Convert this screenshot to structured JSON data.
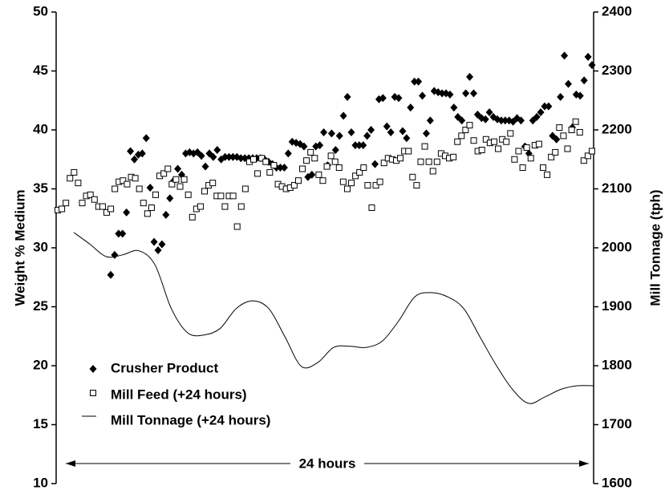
{
  "chart_data": {
    "type": "scatter",
    "ylabel": "Weight % Medium",
    "y2label": "Mill Tonnage (tph)",
    "ylim": [
      10,
      50
    ],
    "yticks": [
      10,
      15,
      20,
      25,
      30,
      35,
      40,
      45,
      50
    ],
    "y2lim": [
      1600,
      2400
    ],
    "y2ticks": [
      1600,
      1700,
      1800,
      1900,
      2000,
      2100,
      2200,
      2300,
      2400
    ],
    "legend": "lower left",
    "annotation": "24 hours",
    "series": [
      {
        "name": "Crusher Product",
        "type": "scatter",
        "marker": "diamond",
        "color": "#000000",
        "values": [
          27.7,
          29.4,
          31.2,
          31.2,
          33.0,
          38.2,
          37.5,
          37.9,
          38.0,
          39.3,
          35.1,
          30.5,
          29.8,
          30.3,
          32.8,
          34.2,
          35.7,
          36.7,
          36.2,
          38.0,
          38.1,
          38.0,
          38.1,
          37.8,
          36.9,
          38.0,
          37.7,
          38.3,
          37.5,
          37.7,
          37.7,
          37.7,
          37.7,
          37.6,
          37.6,
          37.6,
          37.6,
          37.6,
          37.6,
          37.5,
          37.3,
          37.1,
          36.8,
          36.8,
          36.8,
          38.0,
          39.0,
          38.9,
          38.8,
          38.6,
          36.0,
          36.2,
          38.6,
          38.7,
          39.8,
          37.0,
          39.7,
          38.3,
          39.5,
          41.2,
          42.8,
          39.8,
          38.7,
          38.7,
          38.7,
          39.5,
          40.0,
          37.1,
          42.6,
          42.7,
          40.3,
          39.8,
          42.8,
          42.7,
          39.9,
          39.3,
          41.9,
          44.1,
          44.1,
          42.9,
          39.7,
          40.8,
          43.3,
          43.2,
          43.1,
          43.1,
          43.0,
          41.9,
          41.1,
          40.8,
          43.1,
          44.5,
          43.1,
          41.3,
          41.0,
          40.9,
          41.5,
          41.1,
          40.9,
          40.8,
          40.8,
          40.8,
          40.7,
          41.0,
          40.8,
          38.6,
          38.0,
          40.8,
          41.1,
          41.5,
          42.0,
          42.0,
          39.5,
          39.2,
          42.8,
          46.3,
          43.9,
          40.2,
          43.0,
          42.9,
          44.2,
          46.2,
          45.5
        ]
      },
      {
        "name": "Mill Feed (+24 hours)",
        "type": "scatter",
        "marker": "square",
        "color": "#000000",
        "values": [
          33.2,
          33.3,
          33.8,
          35.9,
          36.4,
          35.5,
          33.8,
          34.4,
          34.5,
          34.1,
          33.5,
          33.5,
          33.0,
          33.3,
          35.0,
          35.6,
          35.7,
          35.4,
          36.0,
          35.9,
          35.0,
          33.8,
          32.9,
          33.4,
          34.5,
          36.1,
          36.3,
          36.7,
          35.4,
          35.8,
          35.2,
          35.8,
          34.5,
          32.6,
          33.3,
          33.5,
          34.8,
          35.3,
          35.5,
          34.4,
          34.4,
          33.5,
          34.4,
          34.4,
          31.8,
          33.5,
          35.0,
          37.3,
          37.5,
          36.3,
          37.6,
          37.3,
          36.4,
          37.0,
          35.4,
          35.2,
          35.0,
          35.1,
          35.3,
          35.7,
          36.7,
          37.4,
          38.1,
          37.6,
          36.2,
          35.7,
          36.9,
          37.8,
          37.3,
          36.8,
          35.6,
          35.0,
          35.5,
          36.1,
          36.4,
          36.8,
          35.3,
          33.4,
          35.3,
          35.6,
          37.2,
          37.6,
          37.5,
          37.4,
          37.6,
          38.2,
          38.2,
          36.0,
          35.3,
          37.3,
          38.6,
          37.3,
          36.5,
          37.3,
          38.0,
          37.8,
          37.6,
          37.7,
          39.0,
          39.5,
          40.0,
          40.4,
          39.1,
          38.2,
          38.3,
          39.2,
          38.9,
          39.0,
          38.4,
          39.2,
          39.0,
          39.7,
          37.5,
          38.2,
          36.8,
          38.5,
          37.6,
          38.7,
          38.8,
          36.8,
          36.2,
          37.7,
          38.1,
          40.2,
          39.5,
          38.4,
          40.0,
          40.7,
          39.8,
          37.4,
          37.8,
          38.2
        ]
      },
      {
        "name": "Mill Tonnage (+24 hours)",
        "type": "line",
        "axis": "y2",
        "color": "#000000",
        "values": [
          2026,
          2006,
          1985,
          1988,
          1995,
          1971,
          1897,
          1856,
          1852,
          1863,
          1897,
          1910,
          1897,
          1849,
          1799,
          1805,
          1831,
          1833,
          1831,
          1842,
          1876,
          1917,
          1924,
          1917,
          1897,
          1849,
          1801,
          1760,
          1736,
          1747,
          1760,
          1766,
          1766
        ]
      }
    ]
  }
}
